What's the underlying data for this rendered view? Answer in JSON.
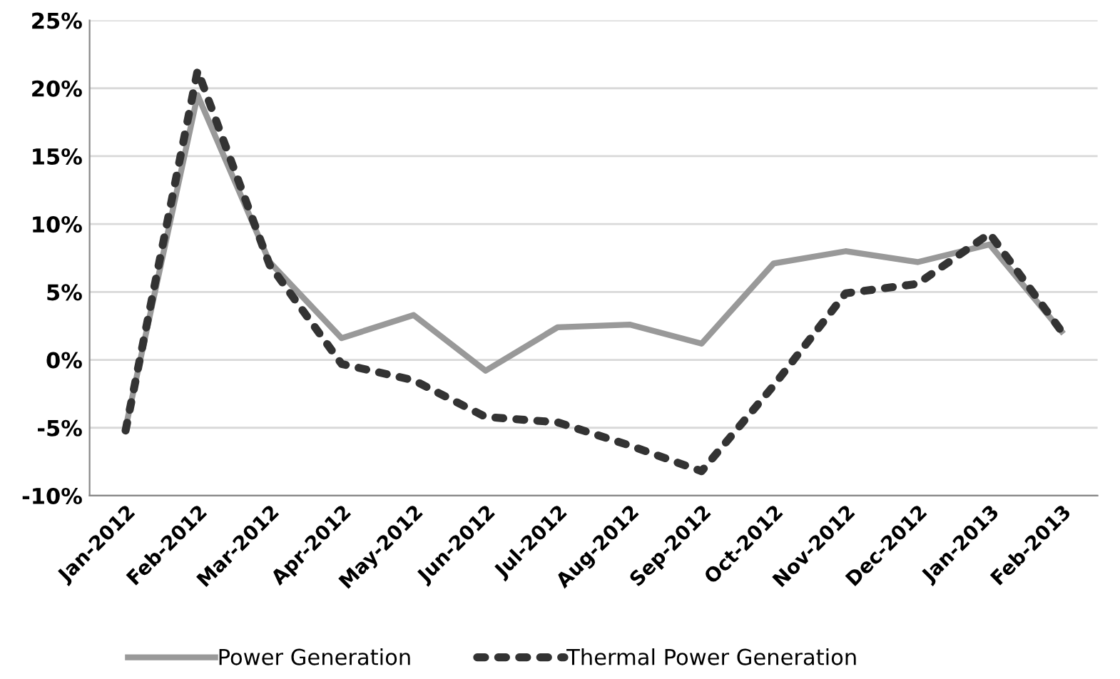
{
  "chart_data": {
    "type": "line",
    "categories": [
      "Jan-2012",
      "Feb-2012",
      "Mar-2012",
      "Apr-2012",
      "May-2012",
      "Jun-2012",
      "Jul-2012",
      "Aug-2012",
      "Sep-2012",
      "Oct-2012",
      "Nov-2012",
      "Dec-2012",
      "Jan-2013",
      "Feb-2013"
    ],
    "series": [
      {
        "name": "Power Generation",
        "color": "#999999",
        "line_style": "solid",
        "values": [
          -5.0,
          19.5,
          7.2,
          1.6,
          3.3,
          -0.8,
          2.4,
          2.6,
          1.2,
          7.1,
          8.0,
          7.2,
          8.5,
          2.1
        ]
      },
      {
        "name": "Thermal Power Generation",
        "color": "#333333",
        "line_style": "dotted",
        "values": [
          -5.2,
          21.3,
          7.0,
          -0.3,
          -1.5,
          -4.2,
          -4.6,
          -6.3,
          -8.2,
          -1.9,
          4.9,
          5.6,
          9.3,
          2.1
        ]
      }
    ],
    "ylim": [
      -10,
      25
    ],
    "yticks": [
      {
        "value": -10,
        "label": "-10%"
      },
      {
        "value": -5,
        "label": "-5%"
      },
      {
        "value": 0,
        "label": "0%"
      },
      {
        "value": 5,
        "label": "5%"
      },
      {
        "value": 10,
        "label": "10%"
      },
      {
        "value": 15,
        "label": "15%"
      },
      {
        "value": 20,
        "label": "20%"
      },
      {
        "value": 25,
        "label": "25%"
      }
    ],
    "grid": "y",
    "legend": "bottom",
    "marker": "none"
  }
}
